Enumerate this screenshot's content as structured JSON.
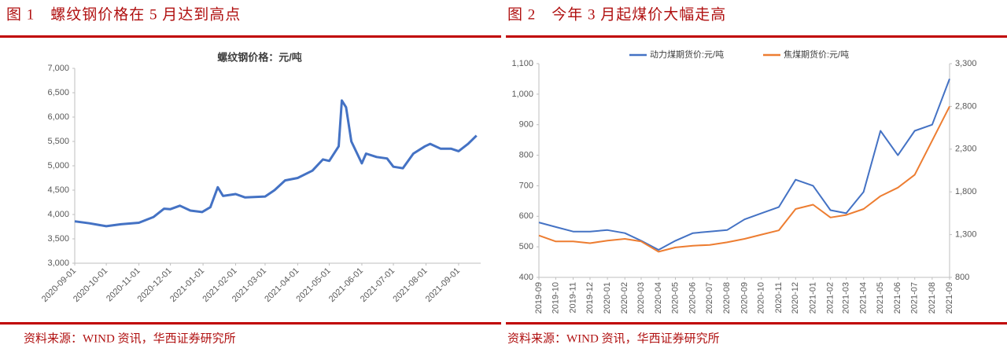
{
  "chart_data": [
    {
      "type": "line",
      "figure_title": "图 1　螺纹钢价格在 5 月达到高点",
      "title": "螺纹钢价格：元/吨",
      "source": "资料来源：WIND 资讯，华西证券研究所",
      "color": "#4472c4",
      "x": [
        "2020-09-01",
        "2020-09-15",
        "2020-10-01",
        "2020-10-15",
        "2020-11-01",
        "2020-11-15",
        "2020-11-25",
        "2020-12-01",
        "2020-12-10",
        "2020-12-20",
        "2020-12-31",
        "2021-01-08",
        "2021-01-15",
        "2021-01-20",
        "2021-02-01",
        "2021-02-10",
        "2021-03-01",
        "2021-03-10",
        "2021-03-20",
        "2021-04-01",
        "2021-04-15",
        "2021-04-25",
        "2021-05-01",
        "2021-05-10",
        "2021-05-13",
        "2021-05-17",
        "2021-05-22",
        "2021-06-01",
        "2021-06-05",
        "2021-06-15",
        "2021-06-25",
        "2021-07-01",
        "2021-07-10",
        "2021-07-20",
        "2021-07-31",
        "2021-08-05",
        "2021-08-15",
        "2021-08-25",
        "2021-09-01",
        "2021-09-10",
        "2021-09-18"
      ],
      "values": [
        3860,
        3820,
        3760,
        3800,
        3830,
        3950,
        4120,
        4110,
        4180,
        4080,
        4050,
        4150,
        4560,
        4380,
        4420,
        4350,
        4370,
        4500,
        4700,
        4750,
        4900,
        5130,
        5100,
        5400,
        6340,
        6200,
        5500,
        5050,
        5250,
        5180,
        5150,
        4980,
        4950,
        5250,
        5400,
        5450,
        5350,
        5350,
        5300,
        5450,
        5620
      ],
      "xlim": [
        "2020-09-01",
        "2021-09-22"
      ],
      "xticks": [
        "2020-09-01",
        "2020-10-01",
        "2020-11-01",
        "2020-12-01",
        "2021-01-01",
        "2021-02-01",
        "2021-03-01",
        "2021-04-01",
        "2021-05-01",
        "2021-06-01",
        "2021-07-01",
        "2021-08-01",
        "2021-09-01"
      ],
      "ylim": [
        3000,
        7000
      ],
      "yticks": [
        {
          "value": 3000,
          "label": "3,000"
        },
        {
          "value": 3500,
          "label": "3,500"
        },
        {
          "value": 4000,
          "label": "4,000"
        },
        {
          "value": 4500,
          "label": "4,500"
        },
        {
          "value": 5000,
          "label": "5,000"
        },
        {
          "value": 5500,
          "label": "5,500"
        },
        {
          "value": 6000,
          "label": "6,000"
        },
        {
          "value": 6500,
          "label": "6,500"
        },
        {
          "value": 7000,
          "label": "7,000"
        }
      ]
    },
    {
      "type": "line",
      "figure_title": "图 2　今年 3 月起煤价大幅走高",
      "source": "资料来源：WIND 资讯，华西证券研究所",
      "x": [
        "2019-09",
        "2019-10",
        "2019-11",
        "2019-12",
        "2020-01",
        "2020-02",
        "2020-03",
        "2020-04",
        "2020-05",
        "2020-06",
        "2020-07",
        "2020-08",
        "2020-09",
        "2020-10",
        "2020-11",
        "2020-12",
        "2021-01",
        "2021-02",
        "2021-03",
        "2021-04",
        "2021-05",
        "2021-06",
        "2021-07",
        "2021-08",
        "2021-09"
      ],
      "series": [
        {
          "name": "动力煤期货价:元/吨",
          "color": "#4472c4",
          "values": [
            580,
            565,
            550,
            550,
            555,
            545,
            520,
            490,
            520,
            545,
            550,
            555,
            590,
            610,
            630,
            720,
            700,
            620,
            610,
            680,
            880,
            800,
            880,
            900,
            1050
          ]
        },
        {
          "name": "焦煤期货价:元/吨",
          "color": "#ed7d31",
          "axis": "y2",
          "values": [
            1290,
            1220,
            1220,
            1200,
            1230,
            1250,
            1220,
            1100,
            1150,
            1170,
            1180,
            1210,
            1250,
            1300,
            1350,
            1600,
            1650,
            1500,
            1530,
            1600,
            1750,
            1850,
            2000,
            2400,
            2800
          ]
        }
      ],
      "xlim": [
        "2019-09",
        "2021-09"
      ],
      "ylim": [
        400,
        1100
      ],
      "yticks": [
        400,
        500,
        600,
        700,
        800,
        900,
        {
          "value": 1000,
          "label": "1,000"
        },
        {
          "value": 1100,
          "label": "1,100"
        }
      ],
      "y2lim": [
        800,
        3300
      ],
      "y2ticks": [
        800,
        {
          "value": 1300,
          "label": "1,300"
        },
        {
          "value": 1800,
          "label": "1,800"
        },
        {
          "value": 2300,
          "label": "2,300"
        },
        {
          "value": 2800,
          "label": "2,800"
        },
        {
          "value": 3300,
          "label": "3,300"
        }
      ]
    }
  ]
}
